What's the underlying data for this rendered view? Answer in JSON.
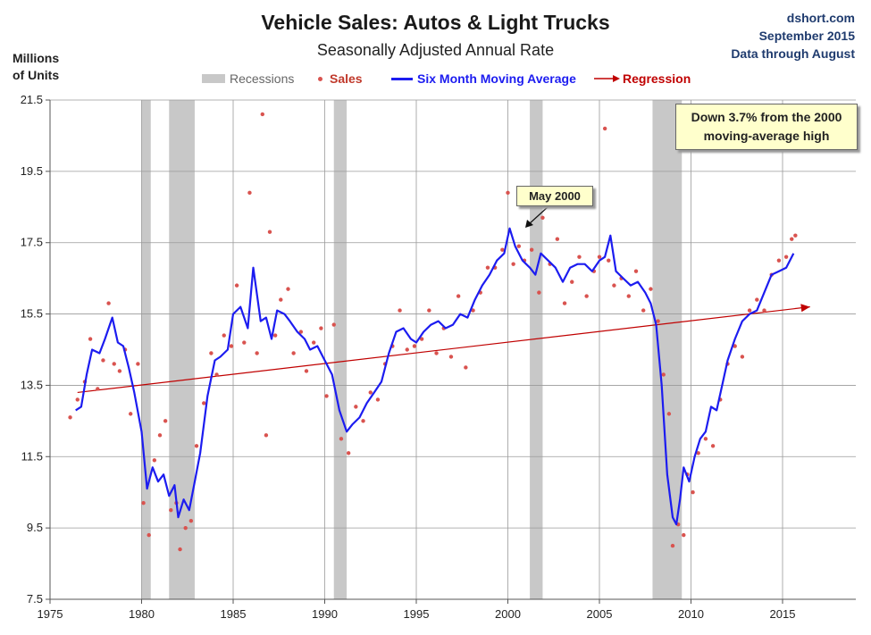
{
  "header": {
    "title": "Vehicle Sales: Autos & Light Trucks",
    "subtitle": "Seasonally Adjusted Annual Rate",
    "ylabel_line1": "Millions",
    "ylabel_line2": "of Units"
  },
  "source": {
    "line1": "dshort.com",
    "line2": "September 2015",
    "line3": "Data through August"
  },
  "legend": {
    "recessions": "Recessions",
    "sales": "Sales",
    "moving_average": "Six Month Moving Average",
    "regression": "Regression"
  },
  "annotations": {
    "callout_main_line1": "Down 3.7% from the 2000",
    "callout_main_line2": "moving-average high",
    "callout_peak": "May 2000"
  },
  "colors": {
    "moving_average": "#1c1cf0",
    "sales_dots": "#d9534f",
    "regression": "#c00000",
    "recession": "#c8c8c8",
    "grid": "#9a9a9a"
  },
  "chart_data": {
    "type": "line",
    "xlim": [
      1975,
      2019
    ],
    "ylim": [
      7.5,
      21.5
    ],
    "x_ticks": [
      "1975",
      "1980",
      "1985",
      "1990",
      "1995",
      "2000",
      "2005",
      "2010",
      "2015"
    ],
    "y_ticks": [
      "7.5",
      "9.5",
      "11.5",
      "13.5",
      "15.5",
      "17.5",
      "19.5",
      "21.5"
    ],
    "grid": true,
    "legend_position": "top-center",
    "recessions": [
      [
        1980.0,
        1980.5
      ],
      [
        1981.5,
        1982.9
      ],
      [
        1990.5,
        1991.2
      ],
      [
        2001.2,
        2001.9
      ],
      [
        2007.9,
        2009.5
      ]
    ],
    "regression": {
      "x": [
        1976.5,
        2016.5
      ],
      "y": [
        13.3,
        15.7
      ]
    },
    "series": [
      {
        "name": "Six Month Moving Average",
        "x": [
          1976.4,
          1976.7,
          1977.0,
          1977.3,
          1977.7,
          1978.0,
          1978.4,
          1978.7,
          1979.0,
          1979.3,
          1979.6,
          1980.0,
          1980.3,
          1980.6,
          1980.9,
          1981.2,
          1981.5,
          1981.8,
          1982.0,
          1982.3,
          1982.6,
          1982.9,
          1983.2,
          1983.6,
          1984.0,
          1984.3,
          1984.7,
          1985.0,
          1985.4,
          1985.8,
          1986.1,
          1986.5,
          1986.8,
          1987.1,
          1987.4,
          1987.8,
          1988.1,
          1988.5,
          1988.9,
          1989.2,
          1989.6,
          1990.0,
          1990.4,
          1990.8,
          1991.2,
          1991.5,
          1991.9,
          1992.3,
          1992.7,
          1993.1,
          1993.5,
          1993.9,
          1994.3,
          1994.7,
          1995.0,
          1995.4,
          1995.8,
          1996.2,
          1996.6,
          1997.0,
          1997.4,
          1997.8,
          1998.2,
          1998.6,
          1999.0,
          1999.4,
          1999.8,
          2000.1,
          2000.4,
          2000.8,
          2001.2,
          2001.5,
          2001.8,
          2002.2,
          2002.6,
          2003.0,
          2003.4,
          2003.8,
          2004.2,
          2004.6,
          2005.0,
          2005.3,
          2005.6,
          2005.9,
          2006.3,
          2006.7,
          2007.1,
          2007.5,
          2007.8,
          2008.1,
          2008.4,
          2008.7,
          2009.0,
          2009.2,
          2009.4,
          2009.6,
          2009.9,
          2010.2,
          2010.5,
          2010.8,
          2011.1,
          2011.4,
          2011.7,
          2012.0,
          2012.4,
          2012.8,
          2013.2,
          2013.6,
          2014.0,
          2014.4,
          2014.8,
          2015.2,
          2015.6
        ],
        "y": [
          12.8,
          12.9,
          13.8,
          14.5,
          14.4,
          14.8,
          15.4,
          14.7,
          14.6,
          14.0,
          13.3,
          12.2,
          10.6,
          11.2,
          10.8,
          11.0,
          10.4,
          10.7,
          9.8,
          10.3,
          10.0,
          10.8,
          11.6,
          13.2,
          14.2,
          14.3,
          14.5,
          15.5,
          15.7,
          15.1,
          16.8,
          15.3,
          15.4,
          14.8,
          15.6,
          15.5,
          15.3,
          15.0,
          14.8,
          14.5,
          14.6,
          14.2,
          13.8,
          12.8,
          12.2,
          12.4,
          12.6,
          13.0,
          13.3,
          13.6,
          14.4,
          15.0,
          15.1,
          14.8,
          14.7,
          15.0,
          15.2,
          15.3,
          15.1,
          15.2,
          15.5,
          15.4,
          15.9,
          16.3,
          16.6,
          17.0,
          17.2,
          17.9,
          17.4,
          17.0,
          16.8,
          16.6,
          17.2,
          17.0,
          16.8,
          16.4,
          16.8,
          16.9,
          16.9,
          16.7,
          17.0,
          17.1,
          17.7,
          16.7,
          16.5,
          16.3,
          16.4,
          16.1,
          15.8,
          15.2,
          13.5,
          11.0,
          9.8,
          9.6,
          10.3,
          11.2,
          10.8,
          11.5,
          12.0,
          12.2,
          12.9,
          12.8,
          13.5,
          14.2,
          14.8,
          15.3,
          15.5,
          15.6,
          16.1,
          16.6,
          16.7,
          16.8,
          17.2
        ]
      },
      {
        "name": "Sales",
        "x": [
          1976.1,
          1976.5,
          1976.9,
          1977.2,
          1977.6,
          1977.9,
          1978.2,
          1978.5,
          1978.8,
          1979.1,
          1979.4,
          1979.8,
          1980.1,
          1980.4,
          1980.7,
          1981.0,
          1981.3,
          1981.6,
          1981.9,
          1982.1,
          1982.4,
          1982.7,
          1983.0,
          1983.4,
          1983.8,
          1984.1,
          1984.5,
          1984.9,
          1985.2,
          1985.6,
          1985.9,
          1986.3,
          1986.6,
          1986.8,
          1987.0,
          1987.3,
          1987.6,
          1988.0,
          1988.3,
          1988.7,
          1989.0,
          1989.4,
          1989.8,
          1990.1,
          1990.5,
          1990.9,
          1991.3,
          1991.7,
          1992.1,
          1992.5,
          1992.9,
          1993.3,
          1993.7,
          1994.1,
          1994.5,
          1994.9,
          1995.3,
          1995.7,
          1996.1,
          1996.5,
          1996.9,
          1997.3,
          1997.7,
          1998.1,
          1998.5,
          1998.9,
          1999.3,
          1999.7,
          2000.0,
          2000.3,
          2000.6,
          2000.9,
          2001.3,
          2001.7,
          2001.9,
          2002.3,
          2002.7,
          2003.1,
          2003.5,
          2003.9,
          2004.3,
          2004.7,
          2005.0,
          2005.3,
          2005.5,
          2005.8,
          2006.2,
          2006.6,
          2007.0,
          2007.4,
          2007.8,
          2008.2,
          2008.5,
          2008.8,
          2009.0,
          2009.3,
          2009.6,
          2009.8,
          2010.1,
          2010.4,
          2010.8,
          2011.2,
          2011.6,
          2012.0,
          2012.4,
          2012.8,
          2013.2,
          2013.6,
          2014.0,
          2014.4,
          2014.8,
          2015.2,
          2015.5,
          2015.7
        ],
        "y": [
          12.6,
          13.1,
          13.6,
          14.8,
          13.4,
          14.2,
          15.8,
          14.1,
          13.9,
          14.5,
          12.7,
          14.1,
          10.2,
          9.3,
          11.4,
          12.1,
          12.5,
          10.0,
          10.2,
          8.9,
          9.5,
          9.7,
          11.8,
          13.0,
          14.4,
          13.8,
          14.9,
          14.6,
          16.3,
          14.7,
          18.9,
          14.4,
          21.1,
          12.1,
          17.8,
          14.9,
          15.9,
          16.2,
          14.4,
          15.0,
          13.9,
          14.7,
          15.1,
          13.2,
          15.2,
          12.0,
          11.6,
          12.9,
          12.5,
          13.3,
          13.1,
          14.1,
          14.6,
          15.6,
          14.5,
          14.6,
          14.8,
          15.6,
          14.4,
          15.1,
          14.3,
          16.0,
          14.0,
          15.6,
          16.1,
          16.8,
          16.8,
          17.3,
          18.9,
          16.9,
          17.4,
          17.0,
          17.3,
          16.1,
          18.2,
          16.9,
          17.6,
          15.8,
          16.4,
          17.1,
          16.0,
          16.7,
          17.1,
          20.7,
          17.0,
          16.3,
          16.5,
          16.0,
          16.7,
          15.6,
          16.2,
          15.3,
          13.8,
          12.7,
          9.0,
          9.6,
          9.3,
          11.0,
          10.5,
          11.6,
          12.0,
          11.8,
          13.1,
          14.1,
          14.6,
          14.3,
          15.6,
          15.9,
          15.6,
          16.6,
          17.0,
          17.1,
          17.6,
          17.7
        ]
      }
    ]
  }
}
